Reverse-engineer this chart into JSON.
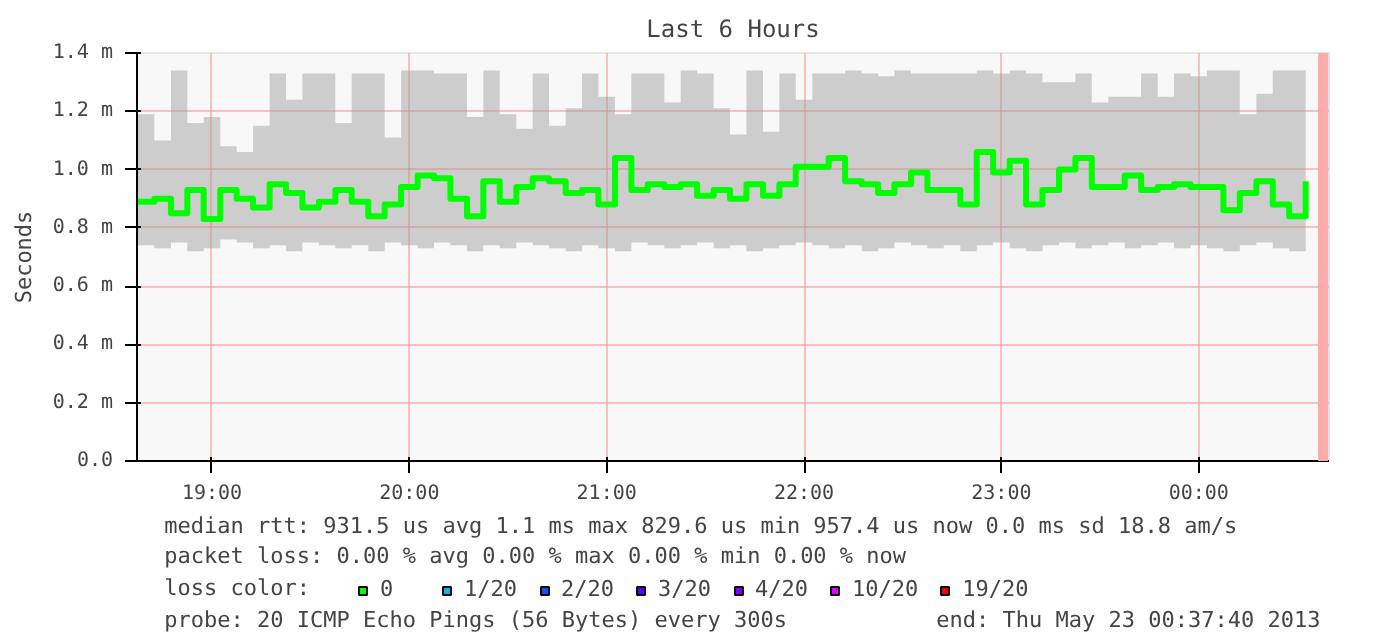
{
  "chart_data": {
    "type": "step",
    "title": "Last 6 Hours",
    "ylabel": "Seconds",
    "legend_title": "loss color:",
    "x": [
      18.625,
      18.708,
      18.792,
      18.875,
      18.958,
      19.042,
      19.125,
      19.208,
      19.292,
      19.375,
      19.458,
      19.542,
      19.625,
      19.708,
      19.792,
      19.875,
      19.958,
      20.042,
      20.125,
      20.208,
      20.292,
      20.375,
      20.458,
      20.542,
      20.625,
      20.708,
      20.792,
      20.875,
      20.958,
      21.042,
      21.125,
      21.208,
      21.292,
      21.375,
      21.458,
      21.542,
      21.625,
      21.708,
      21.792,
      21.875,
      21.958,
      22.042,
      22.125,
      22.208,
      22.292,
      22.375,
      22.458,
      22.542,
      22.625,
      22.708,
      22.792,
      22.875,
      22.958,
      23.042,
      23.125,
      23.208,
      23.292,
      23.375,
      23.458,
      23.542,
      23.625,
      23.708,
      23.792,
      23.875,
      23.958,
      24.042,
      24.125,
      24.208,
      24.292,
      24.375,
      24.458,
      24.542
    ],
    "series": [
      {
        "name": "0",
        "color": "#00ff00",
        "values": [
          0.89,
          0.9,
          0.85,
          0.93,
          0.83,
          0.93,
          0.9,
          0.87,
          0.95,
          0.92,
          0.87,
          0.89,
          0.93,
          0.89,
          0.84,
          0.88,
          0.94,
          0.98,
          0.97,
          0.9,
          0.84,
          0.96,
          0.89,
          0.94,
          0.97,
          0.96,
          0.92,
          0.93,
          0.88,
          1.04,
          0.93,
          0.95,
          0.94,
          0.95,
          0.91,
          0.93,
          0.9,
          0.95,
          0.91,
          0.95,
          1.01,
          1.01,
          1.04,
          0.96,
          0.95,
          0.92,
          0.95,
          0.99,
          0.93,
          0.93,
          0.88,
          1.06,
          0.99,
          1.03,
          0.88,
          0.93,
          1.0,
          1.04,
          0.94,
          0.94,
          0.98,
          0.93,
          0.94,
          0.95,
          0.94,
          0.94,
          0.86,
          0.92,
          0.96,
          0.88,
          0.84,
          0.96
        ],
        "lower": [
          0.74,
          0.73,
          0.75,
          0.72,
          0.73,
          0.76,
          0.75,
          0.73,
          0.74,
          0.72,
          0.75,
          0.74,
          0.73,
          0.74,
          0.72,
          0.75,
          0.74,
          0.73,
          0.75,
          0.74,
          0.72,
          0.74,
          0.73,
          0.75,
          0.74,
          0.73,
          0.72,
          0.74,
          0.73,
          0.72,
          0.75,
          0.74,
          0.73,
          0.74,
          0.75,
          0.73,
          0.74,
          0.72,
          0.73,
          0.74,
          0.75,
          0.74,
          0.73,
          0.74,
          0.72,
          0.73,
          0.75,
          0.74,
          0.73,
          0.74,
          0.72,
          0.74,
          0.75,
          0.73,
          0.72,
          0.74,
          0.75,
          0.73,
          0.74,
          0.75,
          0.73,
          0.74,
          0.75,
          0.73,
          0.74,
          0.73,
          0.72,
          0.74,
          0.75,
          0.73,
          0.72,
          0.74
        ],
        "upper": [
          1.19,
          1.1,
          1.34,
          1.16,
          1.18,
          1.08,
          1.06,
          1.15,
          1.33,
          1.24,
          1.33,
          1.33,
          1.16,
          1.33,
          1.33,
          1.11,
          1.34,
          1.34,
          1.33,
          1.33,
          1.18,
          1.34,
          1.19,
          1.14,
          1.33,
          1.15,
          1.21,
          1.33,
          1.25,
          1.19,
          1.33,
          1.33,
          1.23,
          1.34,
          1.33,
          1.21,
          1.12,
          1.34,
          1.13,
          1.33,
          1.24,
          1.33,
          1.33,
          1.34,
          1.33,
          1.32,
          1.34,
          1.33,
          1.33,
          1.33,
          1.33,
          1.34,
          1.33,
          1.34,
          1.33,
          1.3,
          1.3,
          1.33,
          1.23,
          1.25,
          1.25,
          1.33,
          1.25,
          1.33,
          1.32,
          1.34,
          1.34,
          1.19,
          1.26,
          1.34,
          1.34,
          1.34
        ]
      },
      {
        "name": "1/20",
        "color": "#00b8ff",
        "values": [
          null,
          null,
          null,
          null,
          null,
          null,
          null,
          null,
          null,
          null,
          null,
          null,
          null,
          null,
          null,
          null,
          null,
          null,
          null,
          null,
          null,
          null,
          null,
          null,
          null,
          null,
          null,
          null,
          null,
          null,
          null,
          null,
          null,
          null,
          null,
          null,
          null,
          null,
          null,
          null,
          null,
          null,
          null,
          null,
          null,
          null,
          null,
          null,
          null,
          null,
          null,
          null,
          null,
          null,
          null,
          null,
          null,
          null,
          null,
          null,
          null,
          null,
          null,
          null,
          null,
          null,
          null,
          null,
          null,
          null,
          null,
          null
        ]
      },
      {
        "name": "2/20",
        "color": "#0059ff",
        "values": [
          null,
          null,
          null,
          null,
          null,
          null,
          null,
          null,
          null,
          null,
          null,
          null,
          null,
          null,
          null,
          null,
          null,
          null,
          null,
          null,
          null,
          null,
          null,
          null,
          null,
          null,
          null,
          null,
          null,
          null,
          null,
          null,
          null,
          null,
          null,
          null,
          null,
          null,
          null,
          null,
          null,
          null,
          null,
          null,
          null,
          null,
          null,
          null,
          null,
          null,
          null,
          null,
          null,
          null,
          null,
          null,
          null,
          null,
          null,
          null,
          null,
          null,
          null,
          null,
          null,
          null,
          null,
          null,
          null,
          null,
          null,
          null
        ]
      },
      {
        "name": "3/20",
        "color": "#5e00ff",
        "values": [
          null,
          null,
          null,
          null,
          null,
          null,
          null,
          null,
          null,
          null,
          null,
          null,
          null,
          null,
          null,
          null,
          null,
          null,
          null,
          null,
          null,
          null,
          null,
          null,
          null,
          null,
          null,
          null,
          null,
          null,
          null,
          null,
          null,
          null,
          null,
          null,
          null,
          null,
          null,
          null,
          null,
          null,
          null,
          null,
          null,
          null,
          null,
          null,
          null,
          null,
          null,
          null,
          null,
          null,
          null,
          null,
          null,
          null,
          null,
          null,
          null,
          null,
          null,
          null,
          null,
          null,
          null,
          null,
          null,
          null,
          null,
          null
        ]
      },
      {
        "name": "4/20",
        "color": "#7e00ff",
        "values": [
          null,
          null,
          null,
          null,
          null,
          null,
          null,
          null,
          null,
          null,
          null,
          null,
          null,
          null,
          null,
          null,
          null,
          null,
          null,
          null,
          null,
          null,
          null,
          null,
          null,
          null,
          null,
          null,
          null,
          null,
          null,
          null,
          null,
          null,
          null,
          null,
          null,
          null,
          null,
          null,
          null,
          null,
          null,
          null,
          null,
          null,
          null,
          null,
          null,
          null,
          null,
          null,
          null,
          null,
          null,
          null,
          null,
          null,
          null,
          null,
          null,
          null,
          null,
          null,
          null,
          null,
          null,
          null,
          null,
          null,
          null,
          null
        ]
      },
      {
        "name": "10/20",
        "color": "#dd00ff",
        "values": [
          null,
          null,
          null,
          null,
          null,
          null,
          null,
          null,
          null,
          null,
          null,
          null,
          null,
          null,
          null,
          null,
          null,
          null,
          null,
          null,
          null,
          null,
          null,
          null,
          null,
          null,
          null,
          null,
          null,
          null,
          null,
          null,
          null,
          null,
          null,
          null,
          null,
          null,
          null,
          null,
          null,
          null,
          null,
          null,
          null,
          null,
          null,
          null,
          null,
          null,
          null,
          null,
          null,
          null,
          null,
          null,
          null,
          null,
          null,
          null,
          null,
          null,
          null,
          null,
          null,
          null,
          null,
          null,
          null,
          null,
          null,
          null
        ]
      },
      {
        "name": "19/20",
        "color": "#ff0000",
        "values": [
          null,
          null,
          null,
          null,
          null,
          null,
          null,
          null,
          null,
          null,
          null,
          null,
          null,
          null,
          null,
          null,
          null,
          null,
          null,
          null,
          null,
          null,
          null,
          null,
          null,
          null,
          null,
          null,
          null,
          null,
          null,
          null,
          null,
          null,
          null,
          null,
          null,
          null,
          null,
          null,
          null,
          null,
          null,
          null,
          null,
          null,
          null,
          null,
          null,
          null,
          null,
          null,
          null,
          null,
          null,
          null,
          null,
          null,
          null,
          null,
          null,
          null,
          null,
          null,
          null,
          null,
          null,
          null,
          null,
          null,
          null,
          null
        ]
      }
    ],
    "xlim": [
      18.62,
      24.66
    ],
    "ylim": [
      0,
      1.4
    ],
    "xticks": [
      {
        "value": 19,
        "label": "19:00"
      },
      {
        "value": 20,
        "label": "20:00"
      },
      {
        "value": 21,
        "label": "21:00"
      },
      {
        "value": 22,
        "label": "22:00"
      },
      {
        "value": 23,
        "label": "23:00"
      },
      {
        "value": 24,
        "label": "00:00"
      }
    ],
    "yticks": [
      {
        "value": 0,
        "label": "0.0"
      },
      {
        "value": 0.2,
        "label": "0.2 m"
      },
      {
        "value": 0.4,
        "label": "0.4 m"
      },
      {
        "value": 0.6,
        "label": "0.6 m"
      },
      {
        "value": 0.8,
        "label": "0.8 m"
      },
      {
        "value": 1.0,
        "label": "1.0 m"
      },
      {
        "value": 1.2,
        "label": "1.2 m"
      },
      {
        "value": 1.4,
        "label": "1.4 m"
      }
    ],
    "ref_lines": [
      {
        "axis": "x",
        "value": 24.63,
        "label": null,
        "color": "#ffaaaa"
      }
    ],
    "grid": true,
    "legend": "bottom",
    "annotations": [
      "median rtt:  931.5 us avg  1.1 ms max  829.6 us min  957.4 us now  0.0 ms sd  18.8   am/s",
      "packet loss: 0.00 % avg  0.00 % max  0.00 % min  0.00 % now",
      "probe:        20 ICMP Echo Pings (56 Bytes) every 300s",
      "end: Thu May 23 00:37:40 2013"
    ]
  }
}
